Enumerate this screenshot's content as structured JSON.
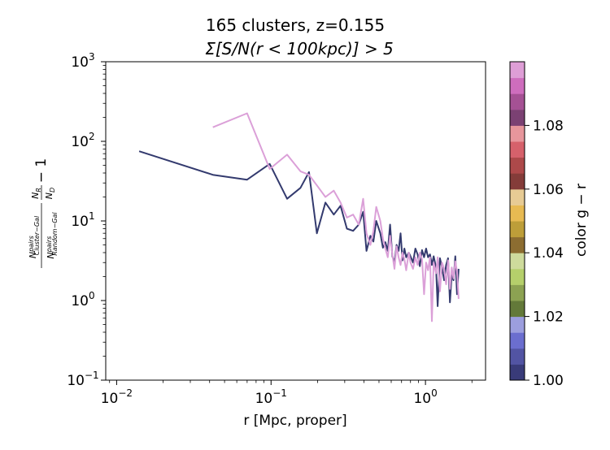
{
  "chart_data": {
    "type": "line",
    "title_line1": "165 clusters, z=0.155",
    "title_line2": "Σ[S/N(r < 100kpc)] > 5",
    "xlabel": "r [Mpc, proper]",
    "ylabel": "(N^pairs_Cluster−Gal / N^pairs_Random−Gal)(N_R / N_D) − 1",
    "xscale": "log",
    "yscale": "log",
    "xlim": [
      0.0085,
      2.45
    ],
    "ylim": [
      0.1,
      1000
    ],
    "x_ticks": [
      {
        "base": "10",
        "exp": "−2"
      },
      {
        "base": "10",
        "exp": "−1"
      },
      {
        "base": "10",
        "exp": "0"
      }
    ],
    "y_ticks": [
      {
        "base": "10",
        "exp": "−1"
      },
      {
        "base": "10",
        "exp": "0"
      },
      {
        "base": "10",
        "exp": "1"
      },
      {
        "base": "10",
        "exp": "2"
      },
      {
        "base": "10",
        "exp": "3"
      }
    ],
    "grid": false,
    "series": [
      {
        "color": "#333a6e",
        "points": [
          [
            0.014,
            75
          ],
          [
            0.042,
            38
          ],
          [
            0.07,
            33
          ],
          [
            0.098,
            52
          ],
          [
            0.127,
            19
          ],
          [
            0.155,
            26
          ],
          [
            0.176,
            41
          ],
          [
            0.198,
            7
          ],
          [
            0.225,
            17
          ],
          [
            0.255,
            12
          ],
          [
            0.282,
            15.5
          ],
          [
            0.31,
            8
          ],
          [
            0.34,
            7.5
          ],
          [
            0.37,
            9
          ],
          [
            0.395,
            13
          ],
          [
            0.415,
            4.2
          ],
          [
            0.44,
            6.5
          ],
          [
            0.46,
            5.5
          ],
          [
            0.48,
            10
          ],
          [
            0.51,
            7
          ],
          [
            0.53,
            4.6
          ],
          [
            0.55,
            5.4
          ],
          [
            0.57,
            4.2
          ],
          [
            0.59,
            9
          ],
          [
            0.61,
            3.6
          ],
          [
            0.63,
            3
          ],
          [
            0.65,
            5
          ],
          [
            0.67,
            4.2
          ],
          [
            0.69,
            7
          ],
          [
            0.71,
            3.2
          ],
          [
            0.73,
            4.5
          ],
          [
            0.75,
            3.5
          ],
          [
            0.78,
            4
          ],
          [
            0.8,
            3.6
          ],
          [
            0.83,
            3
          ],
          [
            0.86,
            4.5
          ],
          [
            0.89,
            3.8
          ],
          [
            0.92,
            2.7
          ],
          [
            0.95,
            4.3
          ],
          [
            0.98,
            3.5
          ],
          [
            1.01,
            4.5
          ],
          [
            1.04,
            3.5
          ],
          [
            1.07,
            3.8
          ],
          [
            1.1,
            2.8
          ],
          [
            1.13,
            3.6
          ],
          [
            1.17,
            2.6
          ],
          [
            1.2,
            0.85
          ],
          [
            1.24,
            3.4
          ],
          [
            1.28,
            2.6
          ],
          [
            1.32,
            1.8
          ],
          [
            1.36,
            2.8
          ],
          [
            1.4,
            3.4
          ],
          [
            1.44,
            0.95
          ],
          [
            1.48,
            2.1
          ],
          [
            1.52,
            1.8
          ],
          [
            1.56,
            3.6
          ],
          [
            1.6,
            1.2
          ],
          [
            1.64,
            2.5
          ]
        ]
      },
      {
        "color": "#dba0d8",
        "points": [
          [
            0.042,
            150
          ],
          [
            0.07,
            225
          ],
          [
            0.098,
            45
          ],
          [
            0.127,
            68
          ],
          [
            0.155,
            42
          ],
          [
            0.176,
            38
          ],
          [
            0.198,
            28
          ],
          [
            0.225,
            20
          ],
          [
            0.255,
            24
          ],
          [
            0.282,
            17
          ],
          [
            0.31,
            11
          ],
          [
            0.34,
            12
          ],
          [
            0.37,
            9
          ],
          [
            0.395,
            19
          ],
          [
            0.415,
            7
          ],
          [
            0.44,
            5
          ],
          [
            0.46,
            7.5
          ],
          [
            0.48,
            15
          ],
          [
            0.51,
            10
          ],
          [
            0.53,
            6
          ],
          [
            0.55,
            4.5
          ],
          [
            0.57,
            3.5
          ],
          [
            0.59,
            6.5
          ],
          [
            0.61,
            3.8
          ],
          [
            0.63,
            2.5
          ],
          [
            0.65,
            4.8
          ],
          [
            0.67,
            3.5
          ],
          [
            0.69,
            2.8
          ],
          [
            0.71,
            4
          ],
          [
            0.73,
            3.3
          ],
          [
            0.75,
            2.4
          ],
          [
            0.78,
            4
          ],
          [
            0.8,
            3
          ],
          [
            0.83,
            2.5
          ],
          [
            0.86,
            3.5
          ],
          [
            0.89,
            2.8
          ],
          [
            0.92,
            4
          ],
          [
            0.95,
            3.3
          ],
          [
            0.98,
            1.2
          ],
          [
            1.01,
            3
          ],
          [
            1.04,
            2.4
          ],
          [
            1.07,
            3.5
          ],
          [
            1.1,
            0.55
          ],
          [
            1.13,
            3
          ],
          [
            1.17,
            2.2
          ],
          [
            1.2,
            3.5
          ],
          [
            1.24,
            1.3
          ],
          [
            1.28,
            3
          ],
          [
            1.32,
            2.5
          ],
          [
            1.36,
            1.6
          ],
          [
            1.4,
            3.2
          ],
          [
            1.44,
            1.4
          ],
          [
            1.48,
            2.6
          ],
          [
            1.52,
            1.9
          ],
          [
            1.56,
            3.1
          ],
          [
            1.6,
            2.3
          ],
          [
            1.64,
            1.05
          ]
        ]
      }
    ],
    "colorbar": {
      "label": "color g − r",
      "range": [
        1.0,
        1.1
      ],
      "tick_values": [
        1.0,
        1.02,
        1.04,
        1.06,
        1.08
      ],
      "tick_labels": [
        "1.00",
        "1.02",
        "1.04",
        "1.06",
        "1.08"
      ],
      "colors": [
        "#393b79",
        "#5254a3",
        "#6b6ecf",
        "#9c9ede",
        "#637939",
        "#8ca252",
        "#b5cf6b",
        "#cedb9c",
        "#8c6d31",
        "#bd9e39",
        "#e7ba52",
        "#e7cb94",
        "#843c39",
        "#ad494a",
        "#d6616b",
        "#e7969c",
        "#7b4173",
        "#a55194",
        "#ce6dbd",
        "#de9ed6"
      ]
    }
  }
}
